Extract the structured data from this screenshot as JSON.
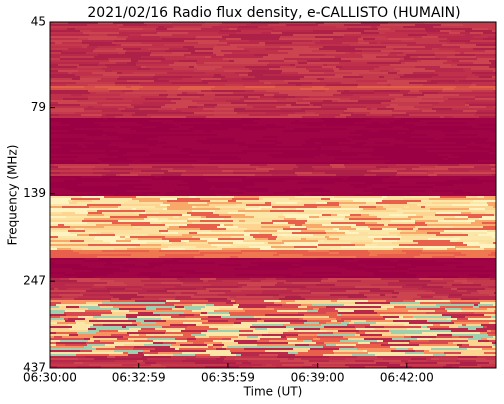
{
  "chart_data": {
    "type": "spectrogram",
    "title": "2021/02/16  Radio flux density, e-CALLISTO (HUMAIN)",
    "xlabel": "Time (UT)",
    "ylabel": "Frequency (MHz)",
    "xlim": [
      "06:30:00",
      "06:45:00"
    ],
    "xticks": [
      "06:30:00",
      "06:32:59",
      "06:35:59",
      "06:39:00",
      "06:42:00"
    ],
    "ylim": [
      45,
      437
    ],
    "yticks": [
      45,
      79,
      139,
      247,
      437
    ],
    "yscale": "log",
    "yinverted": true
  }
}
